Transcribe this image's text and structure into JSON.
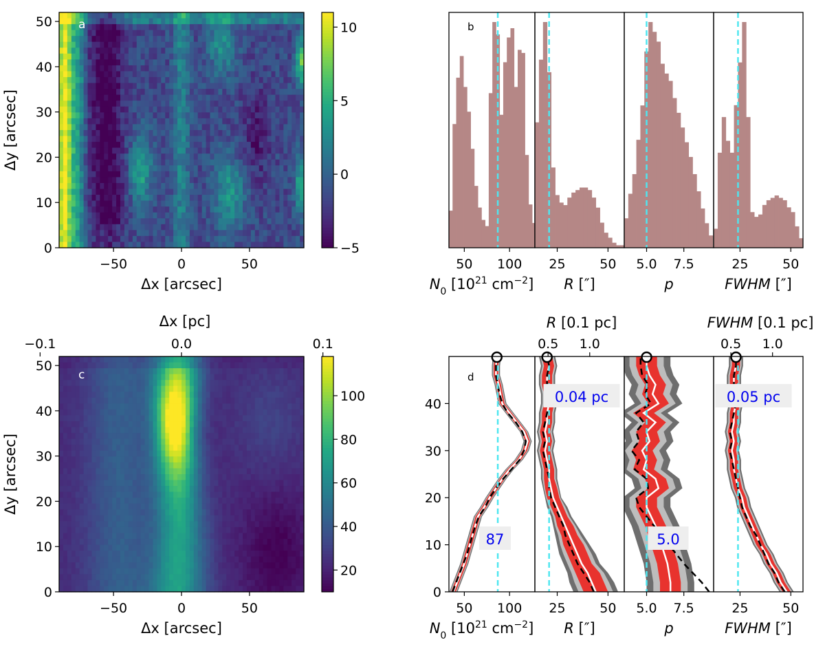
{
  "chart_data": [
    {
      "panel": "a",
      "type": "heatmap",
      "title": "",
      "xlabel": "Δx [arcsec]",
      "ylabel": "Δy [arcsec]",
      "xlim": [
        -90,
        90
      ],
      "ylim": [
        0,
        52
      ],
      "xticks": [
        "-50",
        "0",
        "50"
      ],
      "yticks": [
        "0",
        "10",
        "20",
        "30",
        "40",
        "50"
      ],
      "colorbar": {
        "range": [
          -5,
          11
        ],
        "ticks": [
          "-5",
          "0",
          "5",
          "10"
        ]
      }
    },
    {
      "panel": "b",
      "type": "bar",
      "title": "",
      "subpanels": [
        {
          "xlabel_main": "N",
          "xlabel_sub": "0",
          "xlabel_unit": "[10",
          "xlabel_exp": "21",
          "xlabel_unit2": "cm",
          "xlabel_exp2": "−2",
          "xlabel_close": "]",
          "xlim": [
            33,
            128
          ],
          "xticks": [
            "50",
            "100"
          ],
          "reference": 87,
          "bins_start": 33,
          "bin_width": 4,
          "counts": [
            12,
            40,
            55,
            62,
            52,
            44,
            32,
            20,
            13,
            9,
            7,
            50,
            73,
            69,
            43,
            60,
            68,
            71,
            52,
            64,
            63,
            30,
            14,
            8
          ]
        },
        {
          "xlabel_main": "R",
          "xlabel_unit": "[″]",
          "xlim": [
            14,
            58
          ],
          "xticks": [
            "25",
            "50"
          ],
          "reference": 21,
          "bins_start": 14,
          "bin_width": 2,
          "counts": [
            50,
            75,
            90,
            70,
            32,
            21,
            18,
            17,
            20,
            22,
            23,
            24,
            24,
            23,
            20,
            16,
            10,
            6,
            4,
            2,
            1,
            1
          ]
        },
        {
          "xlabel_main": "p",
          "xlim": [
            3.5,
            9.5
          ],
          "xticks": [
            "5.0",
            "7.5"
          ],
          "reference": 5.0,
          "bins_start": 3.5,
          "bin_width": 0.27,
          "counts": [
            12,
            22,
            30,
            44,
            58,
            80,
            92,
            88,
            84,
            75,
            71,
            68,
            61,
            55,
            49,
            43,
            37,
            30,
            23,
            16,
            10,
            5
          ]
        },
        {
          "xlabel_main": "FWHM",
          "xlabel_unit": "[″]",
          "xlim": [
            12,
            56
          ],
          "xticks": [
            "25",
            "50"
          ],
          "reference": 24,
          "bins_start": 12,
          "bin_width": 2,
          "counts": [
            8,
            40,
            55,
            45,
            40,
            60,
            78,
            95,
            55,
            15,
            13,
            14,
            18,
            20,
            21,
            22,
            21,
            20,
            17,
            15,
            9,
            4
          ]
        }
      ],
      "panel_label": "b"
    },
    {
      "panel": "c",
      "type": "heatmap",
      "title": "",
      "xlabel": "Δx [arcsec]",
      "ylabel": "Δy [arcsec]",
      "top_xlabel": "Δx [pc]",
      "top_xticks": [
        "−0.1",
        "0.0",
        "0.1"
      ],
      "xlim": [
        -90,
        90
      ],
      "ylim": [
        0,
        52
      ],
      "xticks": [
        "-50",
        "0",
        "50"
      ],
      "yticks": [
        "0",
        "10",
        "20",
        "30",
        "40",
        "50"
      ],
      "colorbar": {
        "range": [
          10,
          118
        ],
        "ticks": [
          "20",
          "40",
          "60",
          "80",
          "100"
        ]
      }
    },
    {
      "panel": "d",
      "type": "line",
      "title": "",
      "ylim": [
        0,
        50
      ],
      "yticks": [
        "0",
        "10",
        "20",
        "30",
        "40"
      ],
      "top_xlabel_R": "R [0.1 pc]",
      "top_xlabel_FWHM": "FWHM [0.1 pc]",
      "top_xticks": [
        "0.5",
        "1.0"
      ],
      "annotations": [
        "87",
        "0.04 pc",
        "5.0",
        "0.05 pc"
      ],
      "y": [
        0,
        2,
        4,
        6,
        8,
        10,
        12,
        14,
        16,
        18,
        20,
        22,
        24,
        26,
        28,
        30,
        32,
        34,
        36,
        38,
        40,
        42,
        44,
        46,
        48,
        50
      ],
      "subpanels": [
        {
          "name": "N0",
          "xlim": [
            33,
            128
          ],
          "reference": 87,
          "xticks": [
            "50",
            "100"
          ],
          "median": [
            38,
            42,
            46,
            50,
            53,
            56,
            59,
            62,
            65,
            72,
            78,
            85,
            92,
            100,
            110,
            117,
            120,
            116,
            108,
            100,
            92,
            90,
            88,
            85,
            85,
            86
          ],
          "dashed": [
            37,
            41,
            45,
            49,
            53,
            56,
            59,
            62,
            66,
            73,
            78,
            85,
            93,
            102,
            111,
            116,
            118,
            114,
            107,
            98,
            92,
            89,
            87,
            85,
            85,
            86
          ],
          "band_inner": 2.5,
          "band_outer": 4.5
        },
        {
          "name": "R",
          "xlim": [
            14,
            58
          ],
          "reference": 21,
          "xticks": [
            "25",
            "50"
          ],
          "median": [
            44,
            42,
            40,
            37,
            35,
            33,
            31,
            29,
            27,
            25,
            23,
            22,
            21,
            21,
            20,
            19,
            20,
            19,
            20,
            20,
            21,
            21,
            20,
            20,
            21,
            20
          ],
          "dashed": [
            43,
            41,
            38,
            35,
            33,
            31,
            29,
            28,
            26,
            24,
            22,
            21,
            21,
            20,
            19,
            18,
            19,
            18,
            19,
            20,
            21,
            20,
            20,
            20,
            21,
            20
          ],
          "band_inner": [
            6,
            6,
            6,
            5,
            5,
            5,
            4,
            4,
            3,
            3,
            3,
            3,
            2.5,
            2.5,
            2.5,
            2.5,
            2.5,
            2.5,
            2.5,
            2.5,
            2.5,
            2.5,
            2.5,
            2.5,
            2.5,
            2.5
          ],
          "band_outer": [
            11,
            11,
            10,
            9,
            9,
            8,
            7,
            6,
            5,
            5,
            4,
            4,
            4,
            4,
            4,
            4,
            4,
            4,
            4,
            4,
            4,
            4,
            4,
            4,
            4,
            4
          ]
        },
        {
          "name": "p",
          "xlim": [
            3.5,
            9.5
          ],
          "reference": 5.0,
          "xticks": [
            "5.0",
            "7.5"
          ],
          "median": [
            6.6,
            6.6,
            6.5,
            6.4,
            6.2,
            6.0,
            5.8,
            5.6,
            5.3,
            5.0,
            5.0,
            5.8,
            5.6,
            4.8,
            5.0,
            4.7,
            5.2,
            5.0,
            5.6,
            4.8,
            5.8,
            5.4,
            5.6,
            5.2,
            5.0,
            5.0
          ],
          "dashed": [
            9.2,
            8.7,
            8.1,
            7.5,
            7.0,
            6.5,
            6.0,
            5.5,
            5.0,
            4.5,
            4.3,
            5.1,
            5.0,
            4.2,
            4.5,
            4.0,
            4.5,
            4.3,
            4.8,
            4.3,
            5.3,
            4.9,
            5.1,
            4.7,
            4.6,
            4.6
          ],
          "band_inner": 0.7,
          "band_outer": 1.6
        },
        {
          "name": "FWHM",
          "xlim": [
            12,
            56
          ],
          "reference": 24,
          "xticks": [
            "25",
            "50"
          ],
          "median": [
            48,
            45,
            43,
            40,
            38,
            35,
            33,
            31,
            29,
            27,
            26,
            24,
            23,
            22,
            22,
            21,
            22,
            21,
            22,
            22,
            23,
            23,
            22,
            22,
            23,
            23
          ],
          "dashed": [
            47,
            44,
            42,
            39,
            37,
            35,
            33,
            30,
            28,
            26,
            25,
            24,
            23,
            22,
            21,
            20,
            21,
            20,
            21,
            22,
            23,
            22,
            22,
            22,
            23,
            23
          ],
          "band_inner": 2.0,
          "band_outer": 3.5
        }
      ],
      "panel_label": "d"
    }
  ],
  "labels": {
    "a": "a",
    "b": "b",
    "c": "c",
    "d": "d"
  }
}
